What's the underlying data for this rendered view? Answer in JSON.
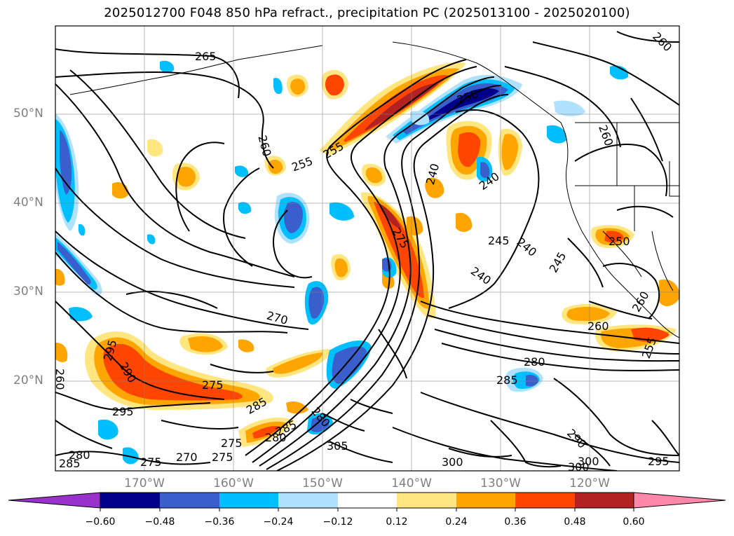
{
  "title": "2025012700 F048 850 hPa refract., precipitation PC (2025013100 - 2025020100)",
  "map": {
    "projection": "cylindrical",
    "lon_range": [
      -180,
      -110
    ],
    "lat_range": [
      10,
      60
    ],
    "lat_labels": [
      "50°N",
      "40°N",
      "30°N",
      "20°N"
    ],
    "lon_labels": [
      "170°W",
      "160°W",
      "150°W",
      "140°W",
      "130°W",
      "120°W"
    ],
    "contour_labels": [
      "265",
      "260",
      "255",
      "255",
      "260",
      "240",
      "240",
      "245",
      "240",
      "245",
      "240",
      "275",
      "270",
      "250",
      "260",
      "260",
      "255",
      "295",
      "290",
      "275",
      "295",
      "285",
      "285",
      "280",
      "280",
      "275",
      "280",
      "305",
      "275",
      "270",
      "275",
      "285",
      "280",
      "285",
      "300",
      "290",
      "300",
      "300",
      "295",
      "260",
      "260",
      "250",
      "260"
    ]
  },
  "colorbar": {
    "ticks": [
      "−0.60",
      "−0.48",
      "−0.36",
      "−0.24",
      "−0.12",
      "0.12",
      "0.24",
      "0.36",
      "0.48",
      "0.60"
    ],
    "colors": [
      "#9932cc",
      "#00008b",
      "#3a5fcd",
      "#00bfff",
      "#b0e2ff",
      "#ffffff",
      "#ffe680",
      "#ffa500",
      "#ff4500",
      "#b22222",
      "#ff88aa"
    ]
  }
}
